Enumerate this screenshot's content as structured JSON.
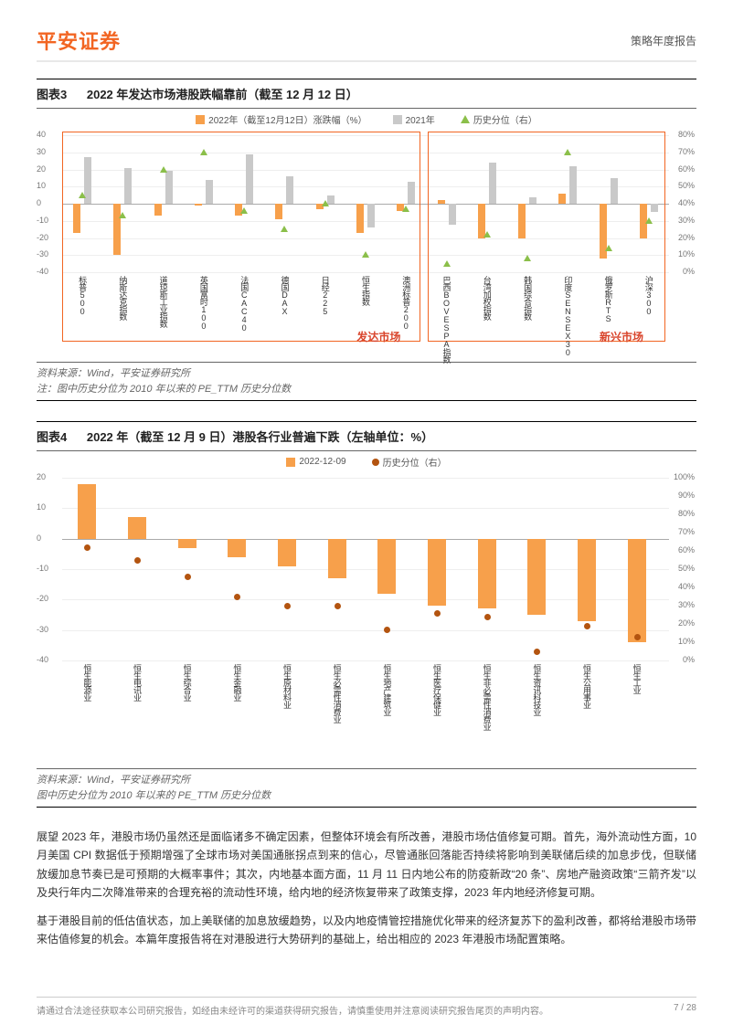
{
  "header": {
    "logo": "平安证券",
    "doc_type": "策略年度报告"
  },
  "chart3": {
    "label": "图表3",
    "title": "2022 年发达市场港股跌幅靠前（截至 12 月 12 日）",
    "legend": {
      "bar1": "2022年（截至12月12日）涨跌幅（%）",
      "bar2": "2021年",
      "tri": "历史分位（右）"
    },
    "y_left": {
      "min": -40,
      "max": 40,
      "ticks": [
        -40,
        -30,
        -20,
        -10,
        0,
        10,
        20,
        30,
        40
      ]
    },
    "y_right": {
      "min": 0,
      "max": 80,
      "ticks": [
        0,
        10,
        20,
        30,
        40,
        50,
        60,
        70,
        80
      ]
    },
    "group1_label": "发达市场",
    "group2_label": "新兴市场",
    "items": [
      {
        "name": "标普500",
        "v2022": -17,
        "v2021": 27,
        "hist": 45
      },
      {
        "name": "纳斯达克指数",
        "v2022": -30,
        "v2021": 21,
        "hist": 33
      },
      {
        "name": "道琼斯工业指数",
        "v2022": -7,
        "v2021": 19,
        "hist": 60
      },
      {
        "name": "英国富时100",
        "v2022": -1,
        "v2021": 14,
        "hist": 70
      },
      {
        "name": "法国CAC40",
        "v2022": -7,
        "v2021": 29,
        "hist": 36
      },
      {
        "name": "德国DAX",
        "v2022": -9,
        "v2021": 16,
        "hist": 25
      },
      {
        "name": "日经225",
        "v2022": -3,
        "v2021": 5,
        "hist": 40
      },
      {
        "name": "恒生指数",
        "v2022": -17,
        "v2021": -14,
        "hist": 10
      },
      {
        "name": "澳洲标普200",
        "v2022": -4,
        "v2021": 13,
        "hist": 37
      },
      {
        "name": "巴西BOVESPA指数",
        "v2022": 2,
        "v2021": -12,
        "hist": 5
      },
      {
        "name": "台湾加权指数",
        "v2022": -20,
        "v2021": 24,
        "hist": 22
      },
      {
        "name": "韩国综合指数",
        "v2022": -20,
        "v2021": 4,
        "hist": 8
      },
      {
        "name": "印度SENSEX30",
        "v2022": 6,
        "v2021": 22,
        "hist": 70
      },
      {
        "name": "俄罗斯RTS",
        "v2022": -32,
        "v2021": 15,
        "hist": 14
      },
      {
        "name": "沪深300",
        "v2022": -20,
        "v2021": -5,
        "hist": 30
      }
    ],
    "colors": {
      "bar2022": "#f7a04b",
      "bar2021": "#c9c9c9",
      "tri": "#8bbf4a",
      "border": "#f26522",
      "grid": "#eeeeee"
    },
    "source": "资料来源：Wind，平安证券研究所",
    "note": "注：图中历史分位为 2010 年以来的 PE_TTM 历史分位数"
  },
  "chart4": {
    "label": "图表4",
    "title": "2022 年（截至 12 月 9 日）港股各行业普遍下跌（左轴单位：%）",
    "legend": {
      "bar": "2022-12-09",
      "dot": "历史分位（右）"
    },
    "y_left": {
      "min": -40,
      "max": 20,
      "ticks": [
        -40,
        -30,
        -20,
        -10,
        0,
        10,
        20
      ]
    },
    "y_right": {
      "min": 0,
      "max": 100,
      "ticks": [
        0,
        10,
        20,
        30,
        40,
        50,
        60,
        70,
        80,
        90,
        100
      ]
    },
    "items": [
      {
        "name": "恒生能源业",
        "v": 18,
        "hist": 62
      },
      {
        "name": "恒生电讯业",
        "v": 7,
        "hist": 55
      },
      {
        "name": "恒生综合业",
        "v": -3,
        "hist": 46
      },
      {
        "name": "恒生金融业",
        "v": -6,
        "hist": 35
      },
      {
        "name": "恒生原材料业",
        "v": -9,
        "hist": 30
      },
      {
        "name": "恒生必需性消费业",
        "v": -13,
        "hist": 30
      },
      {
        "name": "恒生地产建筑业",
        "v": -18,
        "hist": 17
      },
      {
        "name": "恒生医疗保健业",
        "v": -22,
        "hist": 26
      },
      {
        "name": "恒生非必需性消费业",
        "v": -23,
        "hist": 24
      },
      {
        "name": "恒生资讯科技业",
        "v": -25,
        "hist": 5
      },
      {
        "name": "恒生公用事业",
        "v": -27,
        "hist": 19
      },
      {
        "name": "恒生工业",
        "v": -34,
        "hist": 13
      }
    ],
    "colors": {
      "bar": "#f7a04b",
      "dot": "#b35410",
      "grid": "#eeeeee"
    },
    "source": "资料来源：Wind，平安证券研究所",
    "note": "图中历史分位为 2010 年以来的 PE_TTM 历史分位数"
  },
  "paragraphs": [
    "展望 2023 年，港股市场仍虽然还是面临诸多不确定因素，但整体环境会有所改善，港股市场估值修复可期。首先，海外流动性方面，10 月美国 CPI 数据低于预期增强了全球市场对美国通胀拐点到来的信心，尽管通胀回落能否持续将影响到美联储后续的加息步伐，但联储放缓加息节奏已是可预期的大概率事件；其次，内地基本面方面，11 月 11 日内地公布的防疫新政“20 条”、房地产融资政策“三箭齐发”以及央行年内二次降准带来的合理充裕的流动性环境，给内地的经济恢复带来了政策支撑，2023 年内地经济修复可期。",
    "基于港股目前的低估值状态，加上美联储的加息放缓趋势，以及内地疫情管控措施优化带来的经济复苏下的盈利改善，都将给港股市场带来估值修复的机会。本篇年度报告将在对港股进行大势研判的基础上，给出相应的 2023 年港股市场配置策略。"
  ],
  "footer": {
    "disclaimer": "请通过合法途径获取本公司研究报告，如经由未经许可的渠道获得研究报告，请慎重使用并注意阅读研究报告尾页的声明内容。",
    "page": "7 / 28"
  }
}
